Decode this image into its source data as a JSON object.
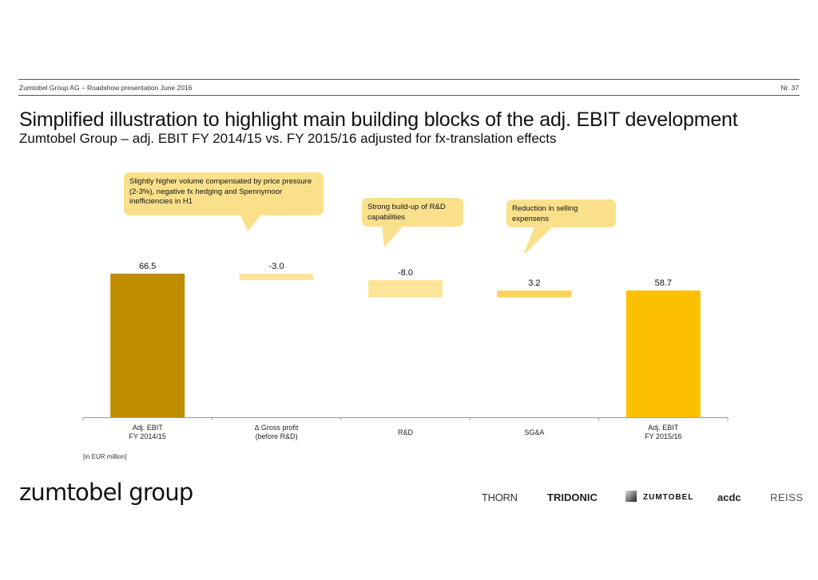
{
  "header": {
    "presentation": "Zumtobel Group AG – Roadshow presentation June 2016",
    "page_number": "Nr. 37"
  },
  "slide": {
    "title": "Simplified illustration to highlight main building blocks of the adj. EBIT development",
    "subtitle": "Zumtobel Group – adj. EBIT FY 2014/15 vs. FY 2015/16  adjusted for fx-translation effects",
    "unit_note": "[in EUR million]"
  },
  "callouts": [
    {
      "text": "Slightly higher volume compensated by price pressure (2-3%), negative fx hedging and Spennymoor inefficiencies in H1"
    },
    {
      "text": "Strong build-up of R&D capabilities"
    },
    {
      "text": "Reduction in selling expensens"
    }
  ],
  "colors": {
    "start_bar": "#bf8c00",
    "delta_negative": "#fde49a",
    "delta_positive": "#fdd35f",
    "end_bar": "#fdc000",
    "callout": "#fbe08c"
  },
  "chart_data": {
    "type": "bar",
    "subtype": "waterfall",
    "title": "Zumtobel Group – adj. EBIT FY 2014/15 vs. FY 2015/16 adjusted for fx-translation effects",
    "xlabel": "",
    "ylabel": "",
    "unit": "EUR million",
    "categories": [
      [
        "Adj. EBIT",
        "FY 2014/15"
      ],
      [
        "∆ Gross profit",
        "(before R&D)"
      ],
      [
        "R&D"
      ],
      [
        "SG&A"
      ],
      [
        "Adj. EBIT",
        "FY 2015/16"
      ]
    ],
    "values": [
      66.5,
      -3.0,
      -8.0,
      3.2,
      58.7
    ],
    "value_labels": [
      "66.5",
      "-3.0",
      "-8.0",
      "3.2",
      "58.7"
    ],
    "bar_kinds": [
      "total",
      "delta",
      "delta",
      "delta",
      "total"
    ],
    "ylim": [
      0,
      70
    ],
    "grid": false,
    "legend": "none"
  },
  "footer": {
    "logo": "zumtobel group",
    "brands": [
      "THORN",
      "TRIDONIC",
      "ZUMTOBEL",
      "acdc",
      "REISS"
    ]
  }
}
